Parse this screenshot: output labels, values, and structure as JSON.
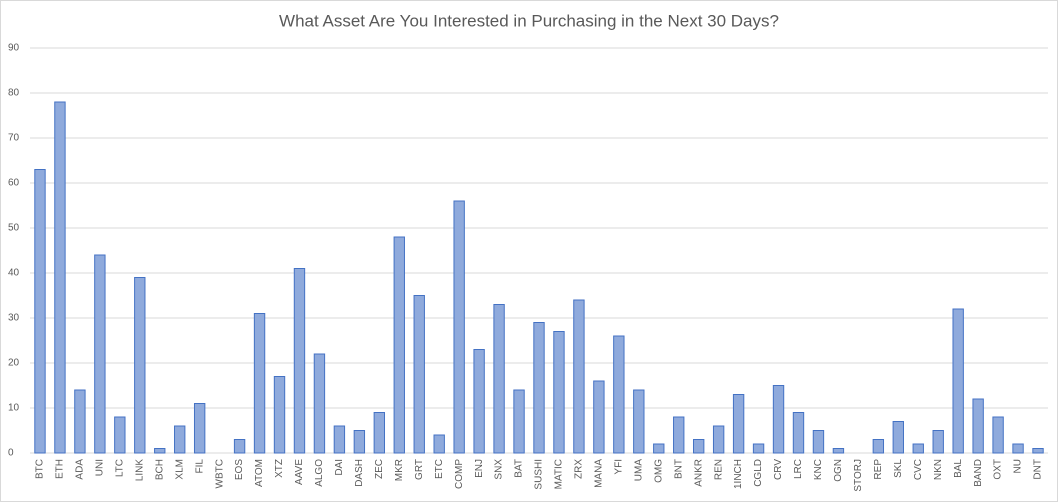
{
  "chart_data": {
    "type": "bar",
    "title": "What Asset Are You Interested in Purchasing in the Next 30 Days?",
    "categories": [
      "BTC",
      "ETH",
      "ADA",
      "UNI",
      "LTC",
      "LINK",
      "BCH",
      "XLM",
      "FIL",
      "WBTC",
      "EOS",
      "ATOM",
      "XTZ",
      "AAVE",
      "ALGO",
      "DAI",
      "DASH",
      "ZEC",
      "MKR",
      "GRT",
      "ETC",
      "COMP",
      "ENJ",
      "SNX",
      "BAT",
      "SUSHI",
      "MATIC",
      "ZRX",
      "MANA",
      "YFI",
      "UMA",
      "OMG",
      "BNT",
      "ANKR",
      "REN",
      "1INCH",
      "CGLD",
      "CRV",
      "LRC",
      "KNC",
      "OGN",
      "STORJ",
      "REP",
      "SKL",
      "CVC",
      "NKN",
      "BAL",
      "BAND",
      "OXT",
      "NU",
      "DNT"
    ],
    "values": [
      63,
      78,
      14,
      44,
      8,
      39,
      1,
      6,
      11,
      0,
      3,
      31,
      17,
      41,
      22,
      6,
      5,
      9,
      48,
      35,
      4,
      56,
      23,
      33,
      14,
      29,
      27,
      34,
      16,
      26,
      14,
      2,
      8,
      3,
      6,
      13,
      2,
      15,
      9,
      5,
      1,
      0,
      3,
      7,
      2,
      5,
      32,
      12,
      8,
      2,
      1
    ],
    "color": "#8faadc",
    "edge_color": "#4472c4",
    "ylim": [
      0,
      90
    ],
    "yticks": [
      0,
      10,
      20,
      30,
      40,
      50,
      60,
      70,
      80,
      90
    ],
    "grid": true
  }
}
